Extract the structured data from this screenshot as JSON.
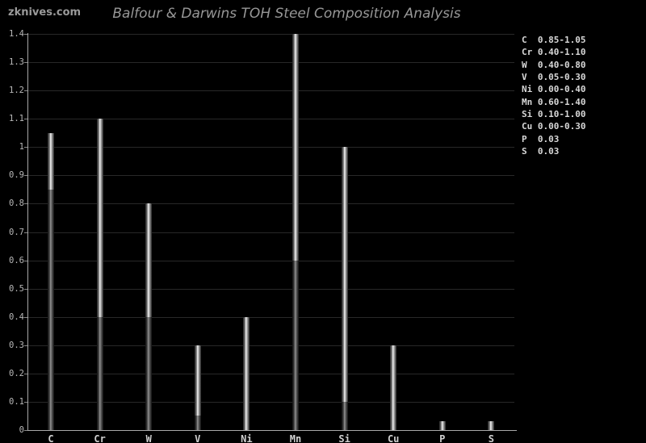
{
  "watermark": "zknives.com",
  "title": "Balfour & Darwins TOH Steel Composition Analysis",
  "colors": {
    "background": "#000000",
    "grid": "#282828",
    "axis": "#a8a8a8",
    "bar_highlight": "#ededed",
    "bar_dim": "#8f8f8f",
    "text": "#d8d8d8",
    "title_text": "#979797"
  },
  "chart_data": {
    "type": "bar",
    "subtype": "range-bars",
    "title": "Balfour & Darwins TOH Steel Composition Analysis",
    "xlabel": "",
    "ylabel": "",
    "categories": [
      "C",
      "Cr",
      "W",
      "V",
      "Ni",
      "Mn",
      "Si",
      "Cu",
      "P",
      "S"
    ],
    "series": [
      {
        "name": "min",
        "values": [
          0.85,
          0.4,
          0.4,
          0.05,
          0.0,
          0.6,
          0.1,
          0.0,
          0.0,
          0.0
        ]
      },
      {
        "name": "max",
        "values": [
          1.05,
          1.1,
          0.8,
          0.3,
          0.4,
          1.4,
          1.0,
          0.3,
          0.03,
          0.03
        ]
      }
    ],
    "ylim": [
      0,
      1.4
    ],
    "ytick_step": 0.1,
    "ytick_labels": [
      "0",
      "0.1",
      "0.2",
      "0.3",
      "0.4",
      "0.5",
      "0.6",
      "0.7",
      "0.8",
      "0.9",
      "1",
      "1.1",
      "1.2",
      "1.3",
      "1.4"
    ],
    "grid": true,
    "legend_position": "right",
    "legend": [
      {
        "label": "C",
        "range": "0.85-1.05"
      },
      {
        "label": "Cr",
        "range": "0.40-1.10"
      },
      {
        "label": "W",
        "range": "0.40-0.80"
      },
      {
        "label": "V",
        "range": "0.05-0.30"
      },
      {
        "label": "Ni",
        "range": "0.00-0.40"
      },
      {
        "label": "Mn",
        "range": "0.60-1.40"
      },
      {
        "label": "Si",
        "range": "0.10-1.00"
      },
      {
        "label": "Cu",
        "range": "0.00-0.30"
      },
      {
        "label": "P",
        "range": "0.03"
      },
      {
        "label": "S",
        "range": "0.03"
      }
    ]
  }
}
